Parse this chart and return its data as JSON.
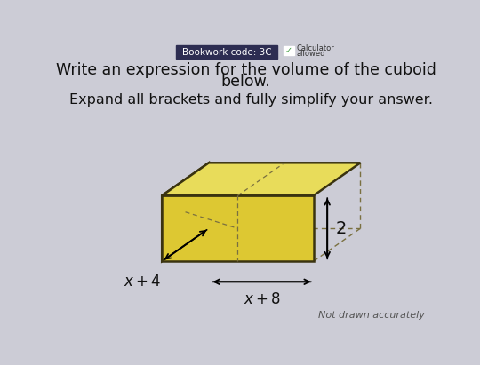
{
  "background_color": "#ccccd6",
  "title_line1": "Write an expression for the volume of the cuboid",
  "title_line2": "below.",
  "subtitle": "Expand all brackets and fully simplify your answer.",
  "bookwork_code": "Bookwork code: 3C",
  "calculator_text": "Calculator\nallowed",
  "label_depth": "$x+4$",
  "label_width": "$x+8$",
  "label_height": "2",
  "note": "Not drawn accurately",
  "cuboid_front_color": "#ddc832",
  "cuboid_top_color": "#e8dc5a",
  "cuboid_left_color": "#cbb828",
  "cuboid_edge_color": "#3a3310",
  "cuboid_dashed_color": "#7a7040",
  "header_bg": "#2d2d52",
  "header_text_color": "#ffffff",
  "title_color": "#111111",
  "note_color": "#555555"
}
